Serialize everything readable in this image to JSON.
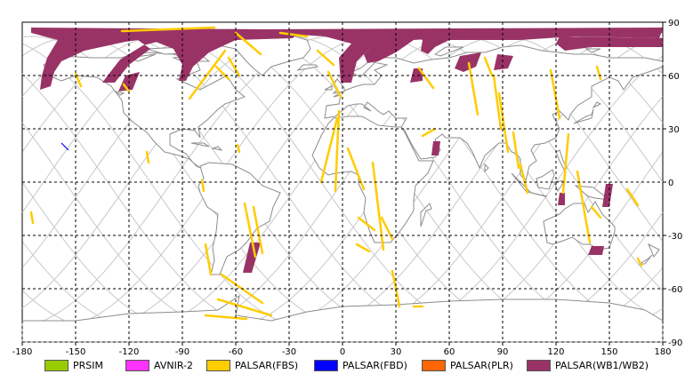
{
  "map": {
    "x_ticks": [
      -180,
      -150,
      -120,
      -90,
      -60,
      -30,
      0,
      30,
      60,
      90,
      120,
      150,
      180
    ],
    "y_ticks": [
      90,
      60,
      30,
      0,
      -30,
      -60,
      -90
    ],
    "xlim": [
      -180,
      180
    ],
    "ylim": [
      -90,
      90
    ],
    "grid": "dashed",
    "colors": {
      "coast": "#8c8c8c",
      "orbit": "#c8c8c8",
      "grid": "#000000"
    }
  },
  "legend": {
    "items": [
      {
        "label": "PRSIM",
        "color": "#99cc00"
      },
      {
        "label": "AVNIR-2",
        "color": "#ff33ff"
      },
      {
        "label": "PALSAR(FBS)",
        "color": "#ffcc00"
      },
      {
        "label": "PALSAR(FBD)",
        "color": "#0000ff"
      },
      {
        "label": "PALSAR(PLR)",
        "color": "#ff6600"
      },
      {
        "label": "PALSAR(WB1/WB2)",
        "color": "#993366"
      }
    ]
  }
}
